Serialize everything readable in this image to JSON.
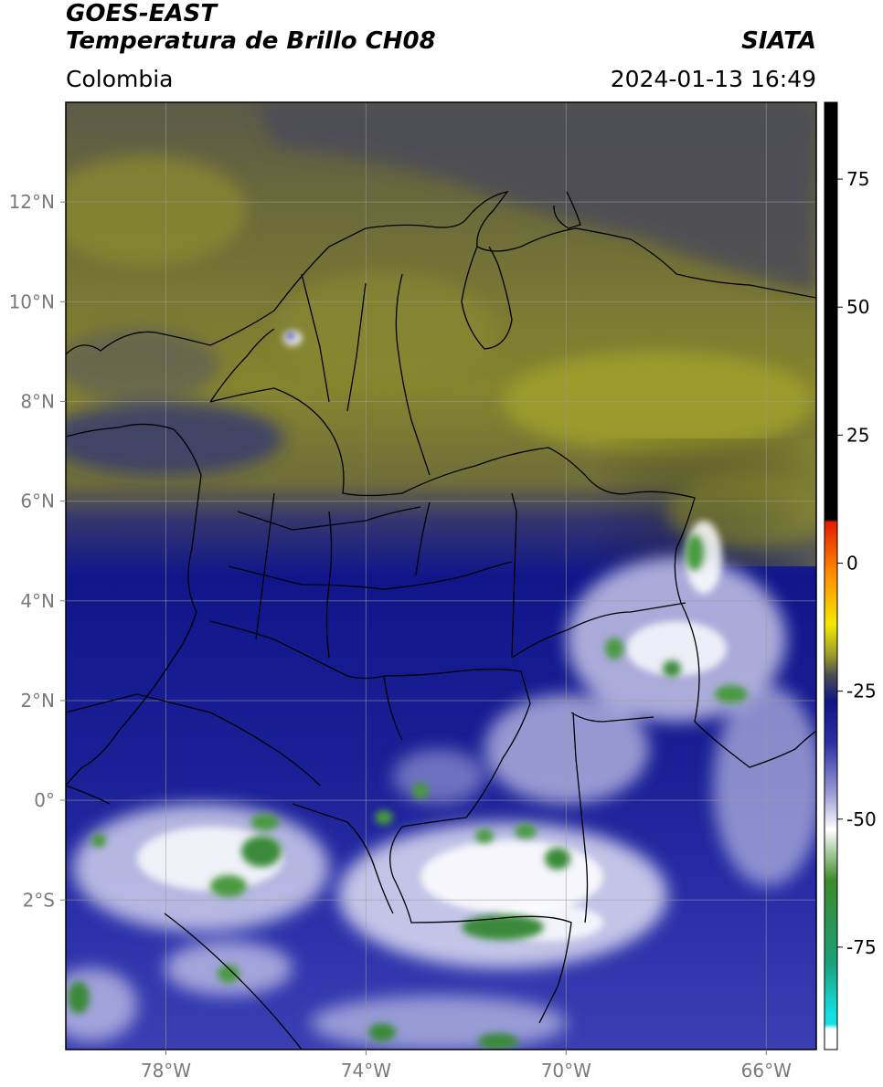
{
  "header": {
    "satellite": "GOES-EAST",
    "product": "Temperatura de Brillo CH08",
    "brand": "SIATA",
    "region": "Colombia",
    "datetime": "2024-01-13 16:49"
  },
  "map": {
    "lon_range": [
      -80,
      -65
    ],
    "lat_range": [
      -5,
      14
    ],
    "lat_ticks": [
      {
        "value": 12,
        "label": "12°N"
      },
      {
        "value": 10,
        "label": "10°N"
      },
      {
        "value": 8,
        "label": "8°N"
      },
      {
        "value": 6,
        "label": "6°N"
      },
      {
        "value": 4,
        "label": "4°N"
      },
      {
        "value": 2,
        "label": "2°N"
      },
      {
        "value": 0,
        "label": "0°"
      },
      {
        "value": -2,
        "label": "2°S"
      }
    ],
    "lon_ticks": [
      {
        "value": -78,
        "label": "78°W"
      },
      {
        "value": -74,
        "label": "74°W"
      },
      {
        "value": -70,
        "label": "70°W"
      },
      {
        "value": -66,
        "label": "66°W"
      }
    ],
    "grid": true
  },
  "colorbar": {
    "range": [
      -95,
      90
    ],
    "ticks": [
      {
        "value": 75,
        "label": "75"
      },
      {
        "value": 50,
        "label": "50"
      },
      {
        "value": 25,
        "label": "25"
      },
      {
        "value": 0,
        "label": "0"
      },
      {
        "value": -25,
        "label": "-25"
      },
      {
        "value": -50,
        "label": "-50"
      },
      {
        "value": -75,
        "label": "-75"
      }
    ],
    "colors": {
      "black": "#000000",
      "red": "#e21d00",
      "orange": "#ff8c00",
      "yellow": "#f3ea00",
      "olive": "#9b9a2b",
      "dark_gray": "#4a4a55",
      "navy": "#0f1585",
      "blue": "#2b2ea5",
      "lavender": "#9a9dd4",
      "white": "#ffffff",
      "green": "#3d8b2a",
      "teal": "#1aa07a",
      "cyan": "#14e0e0"
    }
  }
}
